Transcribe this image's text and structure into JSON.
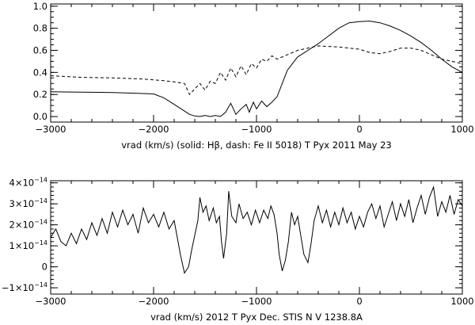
{
  "chart_data": [
    {
      "type": "line",
      "xlabel": "vrad (km/s) (solid: Hβ, dash: Fe II 5018) T Pyx 2011 May 23",
      "xlim": [
        -3000,
        1000
      ],
      "ylim": [
        -0.05,
        1.02
      ],
      "x_ticks": [
        "−3000",
        "−2000",
        "−1000",
        "0",
        "1000"
      ],
      "y_ticks": [
        "0.0",
        "0.2",
        "0.4",
        "0.6",
        "0.8",
        "1.0"
      ],
      "grid": false,
      "series": [
        {
          "style": "solid",
          "points": [
            [
              -3000,
              0.225
            ],
            [
              -2800,
              0.222
            ],
            [
              -2600,
              0.22
            ],
            [
              -2400,
              0.218
            ],
            [
              -2200,
              0.212
            ],
            [
              -2000,
              0.205
            ],
            [
              -1900,
              0.17
            ],
            [
              -1800,
              0.11
            ],
            [
              -1700,
              0.05
            ],
            [
              -1650,
              0.02
            ],
            [
              -1600,
              0.005
            ],
            [
              -1550,
              0.0
            ],
            [
              -1500,
              0.01
            ],
            [
              -1450,
              0.0
            ],
            [
              -1400,
              0.01
            ],
            [
              -1350,
              0.0
            ],
            [
              -1300,
              0.04
            ],
            [
              -1250,
              0.12
            ],
            [
              -1200,
              0.02
            ],
            [
              -1150,
              0.07
            ],
            [
              -1100,
              0.11
            ],
            [
              -1070,
              0.04
            ],
            [
              -1030,
              0.13
            ],
            [
              -1000,
              0.07
            ],
            [
              -950,
              0.14
            ],
            [
              -900,
              0.09
            ],
            [
              -850,
              0.13
            ],
            [
              -800,
              0.18
            ],
            [
              -750,
              0.3
            ],
            [
              -700,
              0.42
            ],
            [
              -600,
              0.54
            ],
            [
              -500,
              0.6
            ],
            [
              -400,
              0.66
            ],
            [
              -300,
              0.73
            ],
            [
              -200,
              0.8
            ],
            [
              -100,
              0.85
            ],
            [
              0,
              0.86
            ],
            [
              100,
              0.865
            ],
            [
              200,
              0.85
            ],
            [
              300,
              0.82
            ],
            [
              400,
              0.78
            ],
            [
              500,
              0.73
            ],
            [
              600,
              0.67
            ],
            [
              700,
              0.6
            ],
            [
              800,
              0.52
            ],
            [
              900,
              0.45
            ],
            [
              1000,
              0.4
            ]
          ]
        },
        {
          "style": "dash",
          "points": [
            [
              -3000,
              0.37
            ],
            [
              -2700,
              0.355
            ],
            [
              -2400,
              0.35
            ],
            [
              -2100,
              0.34
            ],
            [
              -1900,
              0.325
            ],
            [
              -1800,
              0.315
            ],
            [
              -1700,
              0.3
            ],
            [
              -1650,
              0.2
            ],
            [
              -1600,
              0.25
            ],
            [
              -1550,
              0.3
            ],
            [
              -1500,
              0.24
            ],
            [
              -1450,
              0.32
            ],
            [
              -1400,
              0.3
            ],
            [
              -1350,
              0.4
            ],
            [
              -1300,
              0.33
            ],
            [
              -1250,
              0.44
            ],
            [
              -1200,
              0.36
            ],
            [
              -1150,
              0.46
            ],
            [
              -1100,
              0.38
            ],
            [
              -1050,
              0.48
            ],
            [
              -1000,
              0.44
            ],
            [
              -950,
              0.52
            ],
            [
              -900,
              0.5
            ],
            [
              -850,
              0.55
            ],
            [
              -800,
              0.52
            ],
            [
              -700,
              0.56
            ],
            [
              -600,
              0.6
            ],
            [
              -400,
              0.64
            ],
            [
              -200,
              0.63
            ],
            [
              0,
              0.61
            ],
            [
              100,
              0.58
            ],
            [
              200,
              0.57
            ],
            [
              300,
              0.59
            ],
            [
              400,
              0.62
            ],
            [
              500,
              0.62
            ],
            [
              600,
              0.6
            ],
            [
              700,
              0.56
            ],
            [
              800,
              0.52
            ],
            [
              900,
              0.5
            ],
            [
              1000,
              0.48
            ]
          ]
        }
      ]
    },
    {
      "type": "line",
      "xlabel": "vrad (km/s)  2012 T Pyx Dec. STIS  N V 1238.8A",
      "xlim": [
        -3000,
        1000
      ],
      "ylim": [
        -1.3e-14,
        4.1e-14
      ],
      "x_ticks": [
        "−3000",
        "−2000",
        "−1000",
        "0",
        "1000"
      ],
      "y_ticks": [
        {
          "value": -1e-14,
          "mantissa": "−1×10",
          "exp": "−14"
        },
        {
          "value": 0,
          "mantissa": "0",
          "exp": ""
        },
        {
          "value": 1e-14,
          "mantissa": "1×10",
          "exp": "−14"
        },
        {
          "value": 2e-14,
          "mantissa": "2×10",
          "exp": "−14"
        },
        {
          "value": 3e-14,
          "mantissa": "3×10",
          "exp": "−14"
        },
        {
          "value": 4e-14,
          "mantissa": "4×10",
          "exp": "−14"
        }
      ],
      "grid": false,
      "series": [
        {
          "style": "solid",
          "points": [
            [
              -3000,
              1.4e-14
            ],
            [
              -2950,
              1.8e-14
            ],
            [
              -2900,
              1.2e-14
            ],
            [
              -2850,
              1e-14
            ],
            [
              -2800,
              1.6e-14
            ],
            [
              -2750,
              1.1e-14
            ],
            [
              -2700,
              1.8e-14
            ],
            [
              -2650,
              1.3e-14
            ],
            [
              -2600,
              2.1e-14
            ],
            [
              -2550,
              1.5e-14
            ],
            [
              -2500,
              2.3e-14
            ],
            [
              -2450,
              1.6e-14
            ],
            [
              -2400,
              2.6e-14
            ],
            [
              -2350,
              1.9e-14
            ],
            [
              -2300,
              2.7e-14
            ],
            [
              -2250,
              2e-14
            ],
            [
              -2200,
              2.5e-14
            ],
            [
              -2150,
              1.6e-14
            ],
            [
              -2100,
              2.8e-14
            ],
            [
              -2050,
              2.1e-14
            ],
            [
              -2000,
              2.5e-14
            ],
            [
              -1950,
              1.9e-14
            ],
            [
              -1900,
              2.6e-14
            ],
            [
              -1850,
              1.8e-14
            ],
            [
              -1800,
              2.2e-14
            ],
            [
              -1770,
              1.4e-14
            ],
            [
              -1740,
              6e-15
            ],
            [
              -1700,
              -3e-15
            ],
            [
              -1660,
              0.0
            ],
            [
              -1630,
              8e-15
            ],
            [
              -1600,
              1.5e-14
            ],
            [
              -1570,
              2.2e-14
            ],
            [
              -1550,
              3.3e-14
            ],
            [
              -1520,
              2.6e-14
            ],
            [
              -1490,
              2.9e-14
            ],
            [
              -1460,
              2.2e-14
            ],
            [
              -1420,
              2.8e-14
            ],
            [
              -1390,
              2.1e-14
            ],
            [
              -1360,
              2.4e-14
            ],
            [
              -1340,
              1.2e-14
            ],
            [
              -1320,
              4e-15
            ],
            [
              -1290,
              1.6e-14
            ],
            [
              -1270,
              3.6e-14
            ],
            [
              -1240,
              2.4e-14
            ],
            [
              -1200,
              2.1e-14
            ],
            [
              -1170,
              3e-14
            ],
            [
              -1130,
              2.3e-14
            ],
            [
              -1090,
              2.6e-14
            ],
            [
              -1050,
              2e-14
            ],
            [
              -1010,
              2.7e-14
            ],
            [
              -970,
              2.1e-14
            ],
            [
              -930,
              2.7e-14
            ],
            [
              -890,
              2.3e-14
            ],
            [
              -860,
              2.9e-14
            ],
            [
              -830,
              2.5e-14
            ],
            [
              -800,
              1.6e-14
            ],
            [
              -780,
              6e-15
            ],
            [
              -750,
              -2e-15
            ],
            [
              -720,
              3e-15
            ],
            [
              -690,
              1.2e-14
            ],
            [
              -660,
              2.6e-14
            ],
            [
              -630,
              2e-14
            ],
            [
              -600,
              2.4e-14
            ],
            [
              -570,
              1.5e-14
            ],
            [
              -540,
              6e-15
            ],
            [
              -500,
              2e-15
            ],
            [
              -470,
              1.1e-14
            ],
            [
              -440,
              2.2e-14
            ],
            [
              -400,
              2.9e-14
            ],
            [
              -360,
              2.1e-14
            ],
            [
              -320,
              2.7e-14
            ],
            [
              -280,
              1.9e-14
            ],
            [
              -240,
              2.6e-14
            ],
            [
              -200,
              2e-14
            ],
            [
              -160,
              2.8e-14
            ],
            [
              -120,
              2.1e-14
            ],
            [
              -80,
              2.6e-14
            ],
            [
              -40,
              1.8e-14
            ],
            [
              0,
              2.4e-14
            ],
            [
              40,
              1.9e-14
            ],
            [
              80,
              2.6e-14
            ],
            [
              120,
              3e-14
            ],
            [
              160,
              2.3e-14
            ],
            [
              200,
              2.9e-14
            ],
            [
              240,
              1.9e-14
            ],
            [
              280,
              2.5e-14
            ],
            [
              320,
              3.1e-14
            ],
            [
              360,
              2.2e-14
            ],
            [
              400,
              3e-14
            ],
            [
              440,
              2.4e-14
            ],
            [
              480,
              3.2e-14
            ],
            [
              520,
              2.1e-14
            ],
            [
              560,
              2.8e-14
            ],
            [
              600,
              3.4e-14
            ],
            [
              640,
              2.5e-14
            ],
            [
              680,
              3.3e-14
            ],
            [
              720,
              3.8e-14
            ],
            [
              760,
              2.4e-14
            ],
            [
              800,
              3.1e-14
            ],
            [
              840,
              2.6e-14
            ],
            [
              880,
              3.4e-14
            ],
            [
              920,
              2.5e-14
            ],
            [
              960,
              3.2e-14
            ],
            [
              1000,
              2.9e-14
            ]
          ]
        }
      ]
    }
  ]
}
